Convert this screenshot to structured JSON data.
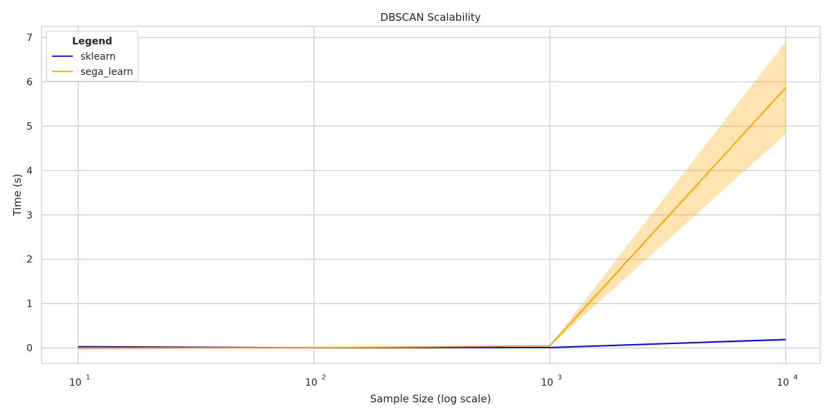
{
  "chart_data": {
    "type": "line",
    "title": "DBSCAN Scalability",
    "xlabel": "Sample Size (log scale)",
    "ylabel": "Time (s)",
    "x_scale": "log",
    "x": [
      10,
      100,
      1000,
      10000
    ],
    "xlim": [
      7,
      14000
    ],
    "ylim": [
      -0.35,
      7.25
    ],
    "x_ticks": [
      {
        "value": 10,
        "base": "10",
        "exp": "1"
      },
      {
        "value": 100,
        "base": "10",
        "exp": "2"
      },
      {
        "value": 1000,
        "base": "10",
        "exp": "3"
      },
      {
        "value": 10000,
        "base": "10",
        "exp": "4"
      }
    ],
    "y_ticks": [
      {
        "value": 0,
        "label": "0"
      },
      {
        "value": 1,
        "label": "1"
      },
      {
        "value": 2,
        "label": "2"
      },
      {
        "value": 3,
        "label": "3"
      },
      {
        "value": 4,
        "label": "4"
      },
      {
        "value": 5,
        "label": "5"
      },
      {
        "value": 6,
        "label": "6"
      },
      {
        "value": 7,
        "label": "7"
      }
    ],
    "grid": true,
    "legend": {
      "title": "Legend",
      "placement": "top-left"
    },
    "series": [
      {
        "name": "sklearn",
        "color": "#0000ff",
        "values": [
          0.03,
          0.005,
          0.01,
          0.19
        ],
        "ci_lower": [
          -0.03,
          0.0,
          0.005,
          0.17
        ],
        "ci_upper": [
          0.04,
          0.01,
          0.015,
          0.21
        ]
      },
      {
        "name": "sega_learn",
        "color": "#ffa500",
        "values": [
          0.0,
          0.005,
          0.05,
          5.87
        ],
        "ci_lower": [
          -0.01,
          0.0,
          0.04,
          4.83
        ],
        "ci_upper": [
          0.01,
          0.01,
          0.06,
          6.91
        ]
      }
    ]
  }
}
